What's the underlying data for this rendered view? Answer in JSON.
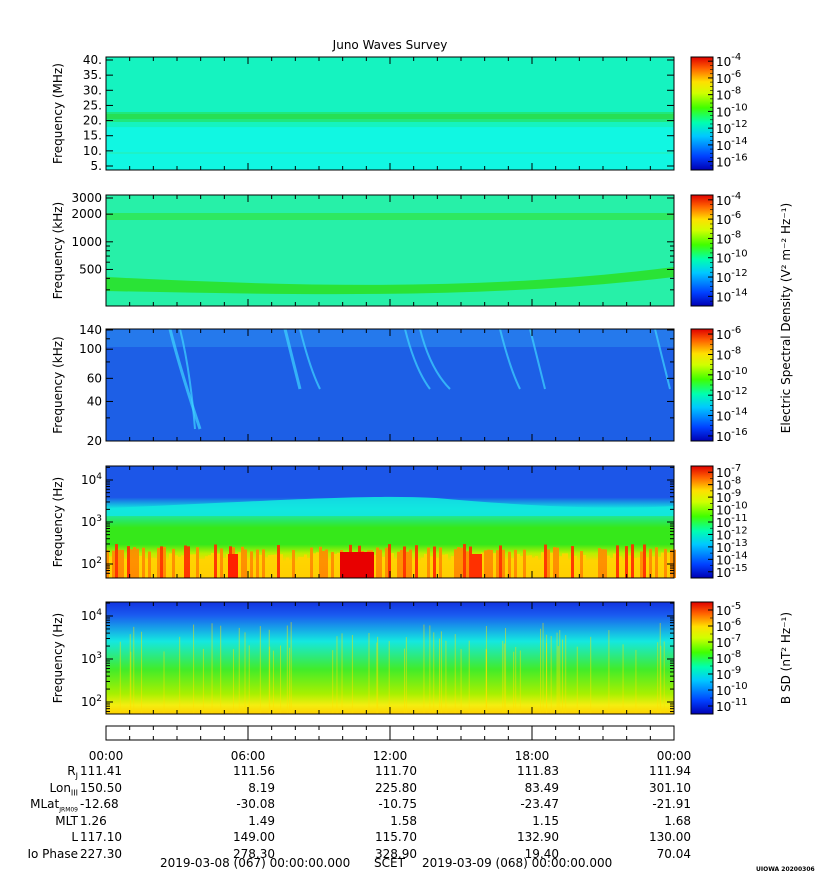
{
  "title": "Juno Waves Survey",
  "stamp": "UIOWA 20200306",
  "footer": {
    "start": "2019-03-08 (067) 00:00:00.000",
    "frame": "SCET",
    "end": "2019-03-09 (068) 00:00:00.000"
  },
  "chart_data": [
    {
      "type": "heatmap",
      "name": "panel-1",
      "ylabel": "Frequency (MHz)",
      "yticks": [
        "40.",
        "35.",
        "30.",
        "25.",
        "20.",
        "15.",
        "10.",
        "5."
      ],
      "colorbar": {
        "ticks": [
          "-4",
          "-6",
          "-8",
          "-10",
          "-12",
          "-14",
          "-16"
        ],
        "range": [
          -17,
          -3.5
        ]
      },
      "colors": {
        "background": "#11f7e2",
        "band": "#1fe87d",
        "band2": "#17f1b2"
      }
    },
    {
      "type": "heatmap",
      "name": "panel-2",
      "ylabel": "Frequency (kHz)",
      "yscale": "log",
      "yticks": [
        "3000",
        "2000",
        "1000",
        "500"
      ],
      "colorbar": {
        "ticks": [
          "-4",
          "-6",
          "-8",
          "-10",
          "-12",
          "-14"
        ],
        "range": [
          -15,
          -3.5
        ],
        "label": "Electric Spectral Density (V² m⁻² Hz⁻¹)"
      },
      "colors": {
        "background": "#27f0a8",
        "band": "#2ee860",
        "lowband": "#2be022"
      }
    },
    {
      "type": "heatmap",
      "name": "panel-3",
      "ylabel": "Frequency (kHz)",
      "yscale": "log",
      "yticks": [
        "140",
        "100",
        "60",
        "40",
        "20"
      ],
      "colorbar": {
        "ticks": [
          "-6",
          "-8",
          "-10",
          "-12",
          "-14",
          "-16"
        ],
        "range": [
          -16.5,
          -5.5
        ]
      },
      "colors": {
        "background": "#1d5fe6",
        "burst": "#3fd6ff"
      }
    },
    {
      "type": "heatmap",
      "name": "panel-4",
      "ylabel": "Frequency (Hz)",
      "yscale": "log",
      "yticks": [
        "10^4",
        "10^3",
        "10^2"
      ],
      "colorbar": {
        "ticks": [
          "-7",
          "-8",
          "-9",
          "-10",
          "-11",
          "-12",
          "-13",
          "-14",
          "-15"
        ],
        "range": [
          -15.5,
          -6.5
        ]
      },
      "colors": {
        "top": "#1c56e8",
        "mid": "#12e7e0",
        "low": "#36e81a",
        "base": "#ffd400",
        "hot": "#ff2a00"
      }
    },
    {
      "type": "heatmap",
      "name": "panel-5",
      "ylabel": "Frequency (Hz)",
      "yscale": "log",
      "yticks": [
        "10^4",
        "10^3",
        "10^2"
      ],
      "colorbar": {
        "ticks": [
          "-5",
          "-6",
          "-7",
          "-8",
          "-9",
          "-10",
          "-11"
        ],
        "range": [
          -11.5,
          -4.5
        ],
        "label": "B SD (nT² Hz⁻¹)"
      },
      "colors": {
        "top": "#1234e0",
        "mid": "#14e8e0",
        "low": "#41ec2a",
        "base": "#f4ee10"
      }
    }
  ],
  "ephemeris": {
    "times": [
      "00:00",
      "06:00",
      "12:00",
      "18:00",
      "00:00"
    ],
    "rows": [
      {
        "label": "RJ",
        "values": [
          "111.41",
          "111.56",
          "111.70",
          "111.83",
          "111.94"
        ]
      },
      {
        "label": "LonIII",
        "values": [
          "150.50",
          "8.19",
          "225.80",
          "83.49",
          "301.10"
        ]
      },
      {
        "label": "MLatJRM09",
        "values": [
          "-12.68",
          "-30.08",
          "-10.75",
          "-23.47",
          "-21.91"
        ]
      },
      {
        "label": "MLT",
        "values": [
          "1.26",
          "1.49",
          "1.58",
          "1.15",
          "1.68"
        ]
      },
      {
        "label": "L",
        "values": [
          "117.10",
          "149.00",
          "115.70",
          "132.90",
          "130.00"
        ]
      },
      {
        "label": "Io Phase",
        "values": [
          "227.30",
          "278.30",
          "328.90",
          "19.40",
          "70.04"
        ]
      }
    ]
  }
}
